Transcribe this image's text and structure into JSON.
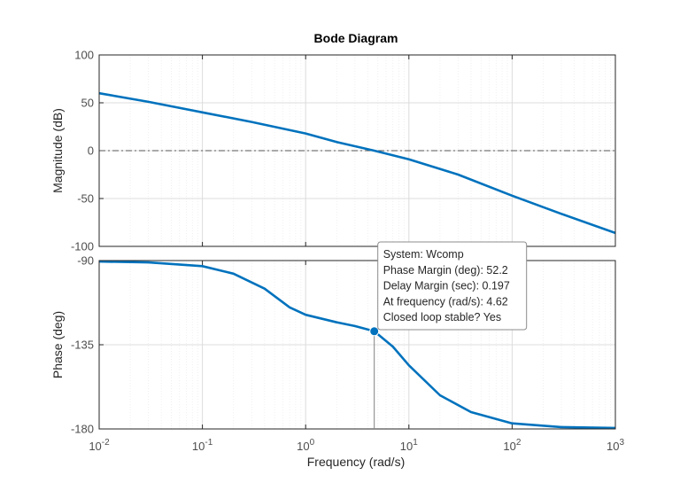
{
  "chart_data": {
    "type": "line",
    "title": "Bode Diagram",
    "xlabel": "Frequency  (rad/s)",
    "xscale": "log",
    "xlim": [
      0.01,
      1000
    ],
    "x_ticks": [
      {
        "base": "10",
        "exp": "-2"
      },
      {
        "base": "10",
        "exp": "-1"
      },
      {
        "base": "10",
        "exp": "0"
      },
      {
        "base": "10",
        "exp": "1"
      },
      {
        "base": "10",
        "exp": "2"
      },
      {
        "base": "10",
        "exp": "3"
      }
    ],
    "grid": true,
    "line_color": "#0072BD",
    "panels": [
      {
        "name": "magnitude",
        "ylabel": "Magnitude (dB)",
        "ylim": [
          -100,
          100
        ],
        "yticks": [
          100,
          50,
          0,
          -50,
          -100
        ],
        "reference_line": 0,
        "series": [
          {
            "name": "Wcomp",
            "x": [
              0.01,
              0.03,
              0.1,
              0.3,
              1,
              2,
              4.62,
              10,
              30,
              100,
              300,
              1000
            ],
            "y": [
              60,
              51,
              40,
              30,
              18,
              9,
              0,
              -9,
              -25,
              -47,
              -66,
              -86
            ]
          }
        ]
      },
      {
        "name": "phase",
        "ylabel": "Phase (deg)",
        "ylim": [
          -180,
          -90
        ],
        "yticks": [
          -90,
          -135,
          -180
        ],
        "reference_line": -180,
        "series": [
          {
            "name": "Wcomp",
            "x": [
              0.01,
              0.03,
              0.1,
              0.2,
              0.4,
              0.7,
              1,
              2,
              3,
              4.62,
              7,
              10,
              20,
              40,
              100,
              300,
              1000
            ],
            "y": [
              -90.5,
              -91,
              -93,
              -97,
              -105,
              -115,
              -119,
              -123,
              -125,
              -127.8,
              -136,
              -146,
              -162,
              -171,
              -177,
              -179,
              -179.5
            ]
          }
        ]
      }
    ],
    "datatip": {
      "x": 4.62,
      "y": -127.8,
      "lines": [
        "System: Wcomp",
        "Phase Margin (deg): 52.2",
        "Delay Margin (sec): 0.197",
        "At frequency (rad/s): 4.62",
        "Closed loop stable? Yes"
      ]
    }
  }
}
